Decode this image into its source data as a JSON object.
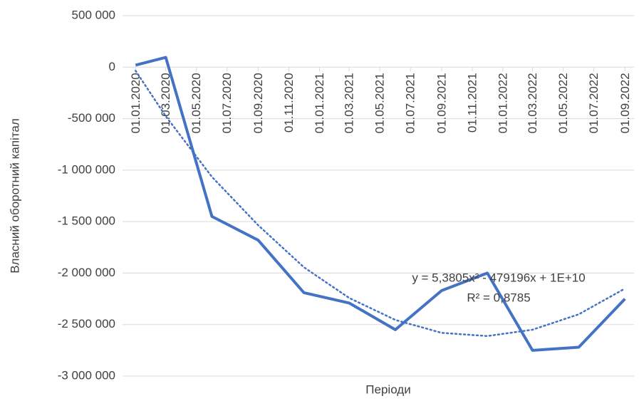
{
  "chart_data": {
    "type": "line",
    "x_axis_label": "Періоди",
    "y_axis_label": "Власний оборотний  капітал",
    "x": [
      "2020-01-01",
      "2020-03-01",
      "2020-06-01",
      "2020-09-01",
      "2020-12-01",
      "2021-03-01",
      "2021-06-01",
      "2021-09-01",
      "2021-12-01",
      "2022-03-01",
      "2022-06-01",
      "2022-09-01"
    ],
    "series": [
      {
        "name": "Власний оборотний  капітал",
        "color": "#4472c4",
        "values": [
          20000,
          95000,
          -1450000,
          -1680000,
          -2190000,
          -2290000,
          -2550000,
          -2170000,
          -2000000,
          -2750000,
          -2720000,
          -2250000
        ]
      }
    ],
    "trendline": {
      "color": "#4472c4",
      "style": "dotted",
      "values": [
        -35000,
        -477000,
        -1065000,
        -1535000,
        -1943000,
        -2241000,
        -2455000,
        -2580000,
        -2611000,
        -2550000,
        -2400000,
        -2150000
      ],
      "equation": "y = 5,3805x² - 479196x + 1E+10",
      "r_squared": "R² = 0,8785"
    },
    "xlim": [
      "2019-12-06",
      "2022-09-19"
    ],
    "xticks": [
      {
        "value": "2020-01-01",
        "label": "01.01.2020"
      },
      {
        "value": "2020-03-01",
        "label": "01.03.2020"
      },
      {
        "value": "2020-05-01",
        "label": "01.05.2020"
      },
      {
        "value": "2020-07-01",
        "label": "01.07.2020"
      },
      {
        "value": "2020-09-01",
        "label": "01.09.2020"
      },
      {
        "value": "2020-11-01",
        "label": "01.11.2020"
      },
      {
        "value": "2021-01-01",
        "label": "01.01.2021"
      },
      {
        "value": "2021-03-01",
        "label": "01.03.2021"
      },
      {
        "value": "2021-05-01",
        "label": "01.05.2021"
      },
      {
        "value": "2021-07-01",
        "label": "01.07.2021"
      },
      {
        "value": "2021-09-01",
        "label": "01.09.2021"
      },
      {
        "value": "2021-11-01",
        "label": "01.11.2021"
      },
      {
        "value": "2022-01-01",
        "label": "01.01.2022"
      },
      {
        "value": "2022-03-01",
        "label": "01.03.2022"
      },
      {
        "value": "2022-05-01",
        "label": "01.05.2022"
      },
      {
        "value": "2022-07-01",
        "label": "01.07.2022"
      },
      {
        "value": "2022-09-01",
        "label": "01.09.2022"
      }
    ],
    "ylim": [
      -3000000,
      500000
    ],
    "yticks": [
      {
        "value": 500000,
        "label": "500 000"
      },
      0,
      {
        "value": -500000,
        "label": "-500 000"
      },
      {
        "value": -1000000,
        "label": "-1 000 000"
      },
      {
        "value": -1500000,
        "label": "-1 500 000"
      },
      {
        "value": -2000000,
        "label": "-2 000 000"
      },
      {
        "value": -2500000,
        "label": "-2 500 000"
      },
      {
        "value": -3000000,
        "label": "-3 000 000"
      }
    ],
    "grid": true
  }
}
